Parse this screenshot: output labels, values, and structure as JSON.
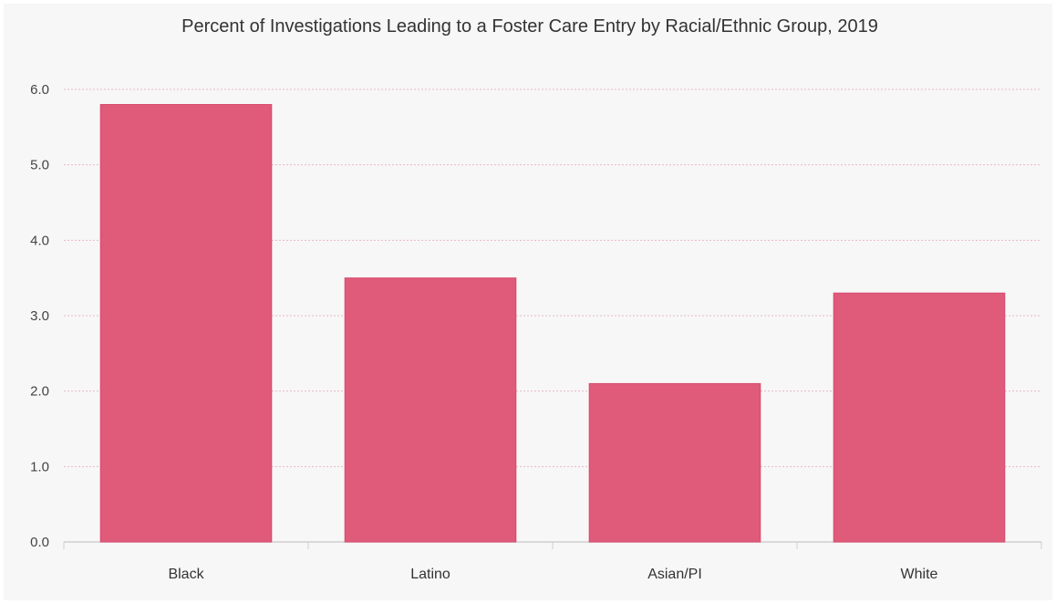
{
  "chart_data": {
    "type": "bar",
    "title": "Percent of Investigations Leading to a Foster Care Entry by Racial/Ethnic Group, 2019",
    "xlabel": "",
    "ylabel": "",
    "categories": [
      "Black",
      "Latino",
      "Asian/PI",
      "White"
    ],
    "values": [
      5.8,
      3.5,
      2.1,
      3.3
    ],
    "ylim": [
      0,
      6
    ],
    "yticks": [
      "0.0",
      "1.0",
      "2.0",
      "3.0",
      "4.0",
      "5.0",
      "6.0"
    ],
    "grid": true,
    "legend": "none",
    "colors": {
      "bar": "#e05a7a",
      "bar_stroke": "#d84a6c",
      "grid": "#eab7c7",
      "axis": "#cfcfcf",
      "background": "#f7f7f7"
    }
  }
}
